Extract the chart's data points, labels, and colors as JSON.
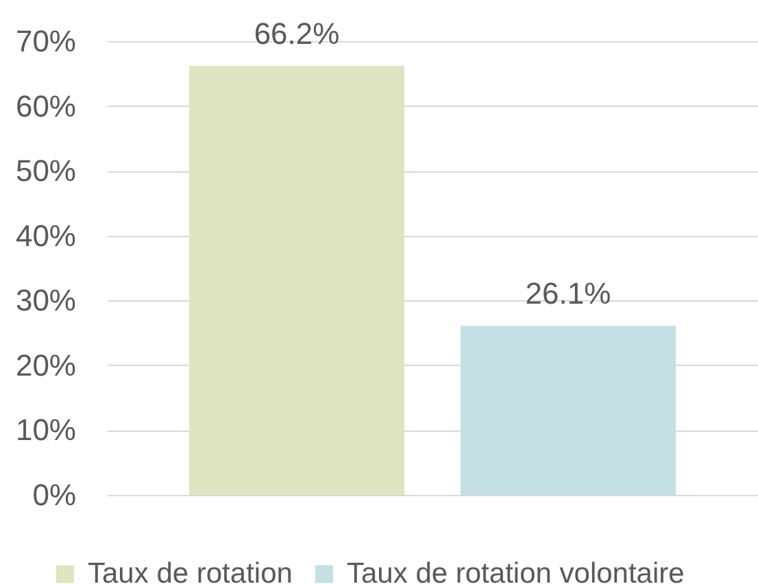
{
  "chart_data": {
    "type": "bar",
    "categories": [
      null
    ],
    "series": [
      {
        "name": "Taux de rotation",
        "color": "#e0e5c1",
        "values": [
          66.2
        ],
        "value_labels": [
          "66.2%"
        ]
      },
      {
        "name": "Taux de rotation volontaire",
        "color": "#c4e0e5",
        "values": [
          26.1
        ],
        "value_labels": [
          "26.1%"
        ]
      }
    ],
    "ylim": [
      0,
      70
    ],
    "yticks": [
      {
        "value": 0,
        "label": "0%"
      },
      {
        "value": 10,
        "label": "10%"
      },
      {
        "value": 20,
        "label": "20%"
      },
      {
        "value": 30,
        "label": "30%"
      },
      {
        "value": 40,
        "label": "40%"
      },
      {
        "value": 50,
        "label": "50%"
      },
      {
        "value": 60,
        "label": "60%"
      },
      {
        "value": 70,
        "label": "70%"
      }
    ],
    "grid": "y",
    "legend": "bottom"
  }
}
